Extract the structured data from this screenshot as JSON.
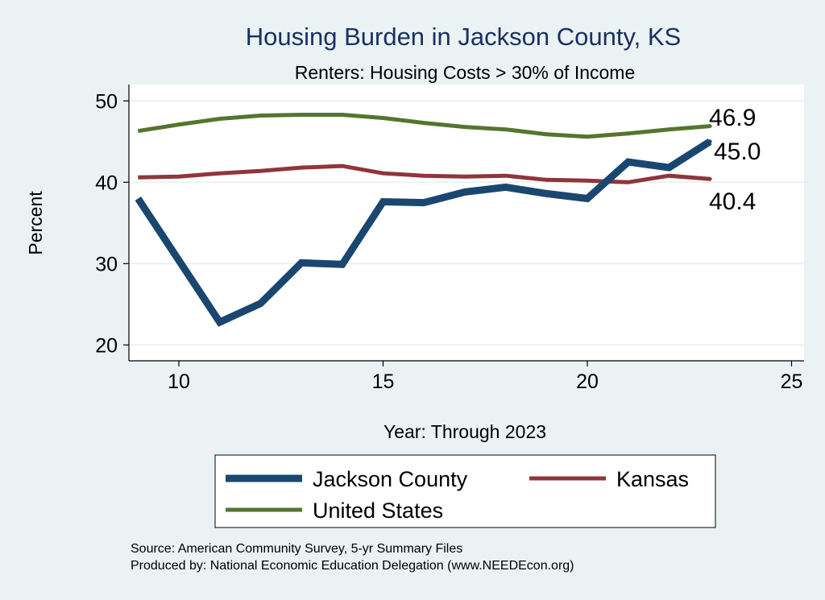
{
  "chart_data": {
    "type": "line",
    "title": "Housing Burden in Jackson County, KS",
    "subtitle": "Renters: Housing Costs > 30% of Income",
    "xlabel": "Year: Through 2023",
    "ylabel": "Percent",
    "xlim": [
      8.8,
      25.3
    ],
    "ylim": [
      18,
      52.1
    ],
    "xticks": [
      10,
      15,
      20,
      25
    ],
    "yticks": [
      20,
      30,
      40,
      50
    ],
    "grid": true,
    "legend_position": "bottom",
    "x": [
      9,
      10,
      11,
      12,
      13,
      14,
      15,
      16,
      17,
      18,
      19,
      20,
      21,
      22,
      23
    ],
    "series": [
      {
        "name": "Jackson County",
        "color": "#1a476f",
        "width": 9,
        "end_label": "45.0",
        "values": [
          38.0,
          30.4,
          22.8,
          25.1,
          30.1,
          29.9,
          37.6,
          37.5,
          38.8,
          39.4,
          38.6,
          38.0,
          42.5,
          41.8,
          45.0
        ]
      },
      {
        "name": "Kansas",
        "color": "#90353b",
        "width": 5,
        "end_label": "40.4",
        "values": [
          40.6,
          40.7,
          41.1,
          41.4,
          41.8,
          42.0,
          41.1,
          40.8,
          40.7,
          40.8,
          40.3,
          40.2,
          40.0,
          40.8,
          40.4
        ]
      },
      {
        "name": "United States",
        "color": "#55752f",
        "width": 5,
        "end_label": "46.9",
        "values": [
          46.3,
          47.1,
          47.8,
          48.2,
          48.3,
          48.3,
          47.9,
          47.3,
          46.8,
          46.5,
          45.9,
          45.6,
          46.0,
          46.5,
          46.9
        ]
      }
    ],
    "notes": [
      "Source: American Community Survey, 5-yr Summary Files",
      "Produced by: National Economic Education Delegation (www.NEEDEcon.org)"
    ]
  }
}
